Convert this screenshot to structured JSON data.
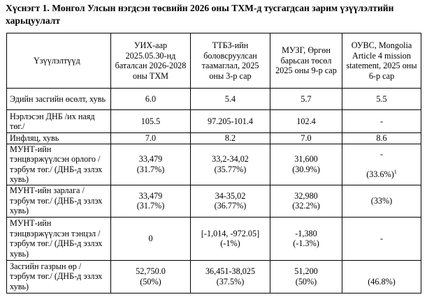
{
  "title": "Хүснэгт 1. Монгол Улсын нэгдсэн төсвийн 2026 оны ТХМ-д тусгагдсан зарим үзүүлэлтийн харьцуулалт",
  "headers": [
    "Үзүүлэлтүүд",
    "УИХ-аар 2025.05.30-нд баталсан 2026-2028 оны ТХМ",
    "ТТБЗ-ийн боловсруулсан таамаглал, 2025 оны 3-р сар",
    "МУЗГ, Өргөн барьсан төсөл 2025 оны 9-р сар",
    "ОУВС, Mongolia Article 4 mission statement, 2025 оны 6-р сар"
  ],
  "rows": [
    {
      "label": "Эдийн засгийн өсөлт, хувь",
      "c1": "6.0",
      "c2": "5.4",
      "c3": "5.7",
      "c4": "5.5"
    },
    {
      "label": "Нэрлэсэн ДНБ /их наяд төг./",
      "c1": "105.5",
      "c2": "97.205-101.4",
      "c3": "102.4",
      "c4": "-"
    },
    {
      "label": "Инфляц, хувь",
      "c1": "7.0",
      "c2": "8.2",
      "c3": "7.0",
      "c4": "8.6"
    },
    {
      "label": "МУНТ-ийн тэнцвэржүүлсэн орлого /тэрбум төг./ (ДНБ-д эзлэх хувь)",
      "c1": "33,479",
      "c1b": "(31.7%)",
      "c2": "33,2-34,02",
      "c2b": "(35.77%)",
      "c3": "31,600",
      "c3b": "(30.9%)",
      "c4": "-",
      "c4b": "(33.6%)",
      "c4sup": "1"
    },
    {
      "label": "МУНТ-ийн зарлага / тэрбум төг./ (ДНБ-д эзлэх хувь)",
      "c1": "33,479",
      "c1b": "(31.7%)",
      "c2": "34-35,02",
      "c2b": "(36.77%)",
      "c3": "32,980",
      "c3b": "(32.2%)",
      "c4": "(33%)"
    },
    {
      "label": "МУНТ-ийн тэнцвэржүүлсэн тэнцэл /тэрбум төг./ (ДНБ-д эзлэх хувь)",
      "c1": "0",
      "c2": "[-1,014, -972.05]",
      "c2b": "(-1%)",
      "c3": "-1,380",
      "c3b": "(-1.3%)",
      "c4": "-"
    },
    {
      "label": "Засгийн газрын өр / тэрбум төг./ (ДНБ-д эзлэх хувь)",
      "c1": "52,750.0",
      "c1b": "(50%)",
      "c2": "36,451-38,025",
      "c2b": "(37.5%)",
      "c3": "51,200",
      "c3b": "(50%)",
      "c4": "(46.8%)"
    }
  ]
}
